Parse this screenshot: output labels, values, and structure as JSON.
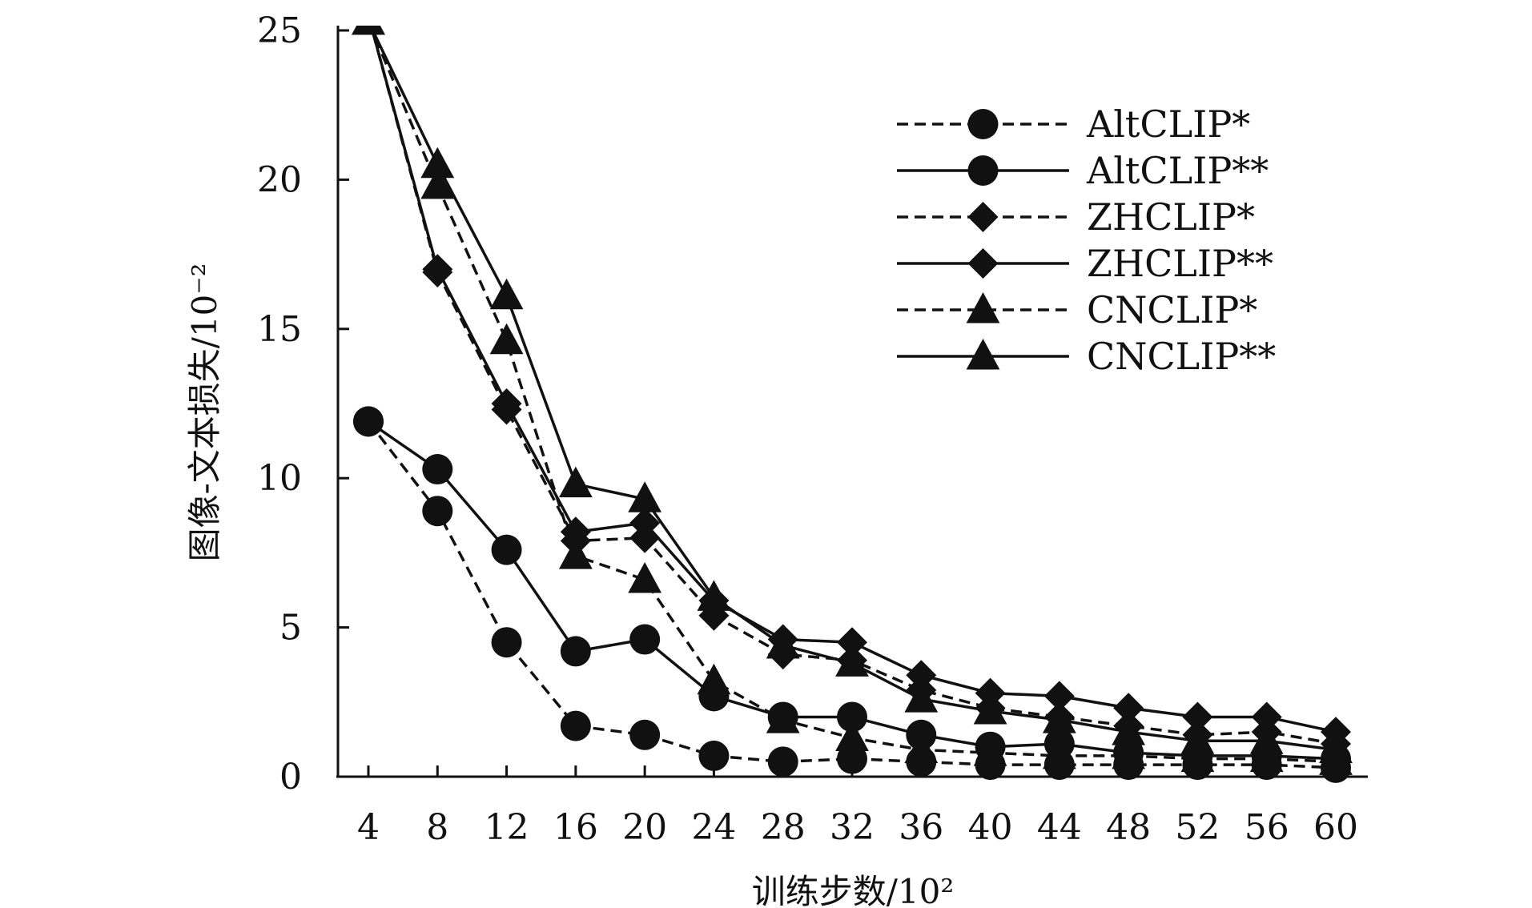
{
  "chart_data": {
    "type": "line",
    "xlabel": "训练步数/10²",
    "ylabel": "图像-文本损失/10⁻²",
    "x": [
      4,
      8,
      12,
      16,
      20,
      24,
      28,
      32,
      36,
      40,
      44,
      48,
      52,
      56,
      60
    ],
    "x_ticks": [
      "4",
      "8",
      "12",
      "16",
      "20",
      "24",
      "28",
      "32",
      "36",
      "40",
      "44",
      "48",
      "52",
      "56",
      "60"
    ],
    "y_ticks": [
      "0",
      "5",
      "10",
      "15",
      "20",
      "25"
    ],
    "xlim": [
      2,
      62
    ],
    "ylim": [
      0,
      25
    ],
    "grid": false,
    "legend_position": "top-right",
    "series": [
      {
        "name": "AltCLIP*",
        "style": "dashed",
        "marker": "circle",
        "values": [
          11.9,
          8.9,
          4.5,
          1.7,
          1.4,
          0.7,
          0.5,
          0.6,
          0.5,
          0.4,
          0.4,
          0.4,
          0.4,
          0.4,
          0.3
        ]
      },
      {
        "name": "AltCLIP**",
        "style": "solid",
        "marker": "circle",
        "values": [
          11.9,
          10.3,
          7.6,
          4.2,
          4.6,
          2.7,
          2.0,
          2.0,
          1.4,
          1.0,
          1.1,
          0.8,
          0.7,
          0.7,
          0.6
        ]
      },
      {
        "name": "ZHCLIP*",
        "style": "dashed",
        "marker": "diamond",
        "values": [
          25.5,
          16.9,
          12.3,
          7.9,
          8.0,
          5.4,
          4.1,
          3.9,
          2.9,
          2.3,
          2.0,
          1.7,
          1.4,
          1.5,
          1.1
        ]
      },
      {
        "name": "ZHCLIP**",
        "style": "solid",
        "marker": "diamond",
        "values": [
          25.5,
          17.0,
          12.5,
          8.2,
          8.5,
          5.9,
          4.6,
          4.5,
          3.4,
          2.8,
          2.7,
          2.3,
          2.0,
          2.0,
          1.5
        ]
      },
      {
        "name": "CNCLIP*",
        "style": "dashed",
        "marker": "triangle",
        "values": [
          25.3,
          19.8,
          14.6,
          7.4,
          6.6,
          3.2,
          1.9,
          1.3,
          0.9,
          0.8,
          0.7,
          0.7,
          0.6,
          0.6,
          0.5
        ]
      },
      {
        "name": "CNCLIP**",
        "style": "solid",
        "marker": "triangle",
        "values": [
          25.3,
          20.5,
          16.1,
          9.8,
          9.3,
          6.0,
          4.4,
          3.8,
          2.6,
          2.2,
          1.9,
          1.5,
          1.2,
          1.2,
          0.9
        ]
      }
    ]
  }
}
